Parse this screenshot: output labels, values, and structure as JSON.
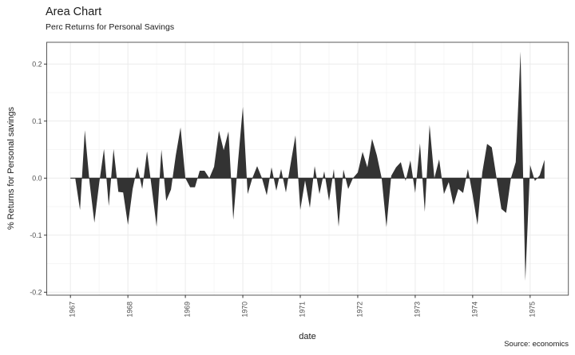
{
  "header": {
    "title": "Area Chart",
    "subtitle": "Perc Returns for Personal Savings"
  },
  "caption": "Source: economics",
  "axes": {
    "x": {
      "label": "date",
      "ticks": [
        "1967",
        "1968",
        "1969",
        "1970",
        "1971",
        "1972",
        "1973",
        "1974",
        "1975"
      ]
    },
    "y": {
      "label": "% Returns for Personal savings",
      "ticks": [
        "0.2",
        "0.1",
        "0.0",
        "-0.1",
        "-0.2"
      ]
    }
  },
  "colors": {
    "area": "#333333",
    "baseline": "#333333",
    "grid_major": "#ebebeb",
    "grid_minor": "#f4f4f4",
    "panel_border": "#585858",
    "panel_bg": "#ffffff",
    "axis_text": "#4d4d4d",
    "tick_mark": "#333333",
    "text": "#1a1a1a"
  },
  "chart_data": {
    "type": "area",
    "title": "Area Chart",
    "subtitle": "Perc Returns for Personal Savings",
    "xlabel": "date",
    "ylabel": "% Returns for Personal savings",
    "caption": "Source: economics",
    "grid": true,
    "legend": false,
    "ylim": [
      -0.206,
      0.238
    ],
    "y_major_ticks": [
      0.2,
      0.1,
      0.0,
      -0.1,
      -0.2
    ],
    "y_minor_ticks": [
      0.15,
      0.05,
      -0.05,
      -0.15
    ],
    "x_major_tick_months": [
      0,
      12,
      24,
      36,
      48,
      60,
      72,
      84,
      96
    ],
    "x_minor_tick_months": [
      6,
      18,
      30,
      42,
      54,
      66,
      78,
      90
    ],
    "x": [
      "1967-07",
      "1967-08",
      "1967-09",
      "1967-10",
      "1967-11",
      "1967-12",
      "1968-01",
      "1968-02",
      "1968-03",
      "1968-04",
      "1968-05",
      "1968-06",
      "1968-07",
      "1968-08",
      "1968-09",
      "1968-10",
      "1968-11",
      "1968-12",
      "1969-01",
      "1969-02",
      "1969-03",
      "1969-04",
      "1969-05",
      "1969-06",
      "1969-07",
      "1969-08",
      "1969-09",
      "1969-10",
      "1969-11",
      "1969-12",
      "1970-01",
      "1970-02",
      "1970-03",
      "1970-04",
      "1970-05",
      "1970-06",
      "1970-07",
      "1970-08",
      "1970-09",
      "1970-10",
      "1970-11",
      "1970-12",
      "1971-01",
      "1971-02",
      "1971-03",
      "1971-04",
      "1971-05",
      "1971-06",
      "1971-07",
      "1971-08",
      "1971-09",
      "1971-10",
      "1971-11",
      "1971-12",
      "1972-01",
      "1972-02",
      "1972-03",
      "1972-04",
      "1972-05",
      "1972-06",
      "1972-07",
      "1972-08",
      "1972-09",
      "1972-10",
      "1972-11",
      "1972-12",
      "1973-01",
      "1973-02",
      "1973-03",
      "1973-04",
      "1973-05",
      "1973-06",
      "1973-07",
      "1973-08",
      "1973-09",
      "1973-10",
      "1973-11",
      "1973-12",
      "1974-01",
      "1974-02",
      "1974-03",
      "1974-04",
      "1974-05",
      "1974-06",
      "1974-07",
      "1974-08",
      "1974-09",
      "1974-10",
      "1974-11",
      "1974-12",
      "1975-01",
      "1975-02",
      "1975-03",
      "1975-04",
      "1975-05",
      "1975-06",
      "1975-07",
      "1975-08",
      "1975-09",
      "1975-10"
    ],
    "values": [
      0.0,
      0.0,
      -0.056,
      0.084,
      -0.008,
      -0.078,
      -0.009,
      0.051,
      -0.049,
      0.051,
      -0.024,
      -0.025,
      -0.082,
      -0.019,
      0.02,
      -0.019,
      0.047,
      -0.018,
      -0.085,
      0.05,
      -0.04,
      -0.02,
      0.04,
      0.089,
      0.0,
      -0.016,
      -0.016,
      0.013,
      0.013,
      0.0,
      0.02,
      0.083,
      0.049,
      0.082,
      -0.073,
      0.03,
      0.125,
      -0.028,
      0.0,
      0.021,
      0.0,
      -0.03,
      0.019,
      -0.022,
      0.016,
      -0.025,
      0.026,
      0.075,
      -0.056,
      -0.004,
      -0.052,
      0.021,
      -0.028,
      0.012,
      -0.04,
      0.016,
      -0.085,
      0.015,
      -0.019,
      0.0,
      0.01,
      0.046,
      0.019,
      0.069,
      0.04,
      0.0,
      -0.086,
      0.004,
      0.019,
      0.028,
      -0.005,
      0.031,
      -0.026,
      0.061,
      -0.059,
      0.093,
      0.0,
      0.033,
      -0.028,
      -0.007,
      -0.047,
      -0.019,
      -0.026,
      0.016,
      -0.03,
      -0.082,
      0.01,
      0.06,
      0.054,
      0.0,
      -0.054,
      -0.061,
      0.0,
      0.028,
      0.222,
      -0.18,
      0.023,
      -0.005,
      0.005,
      0.032
    ]
  }
}
